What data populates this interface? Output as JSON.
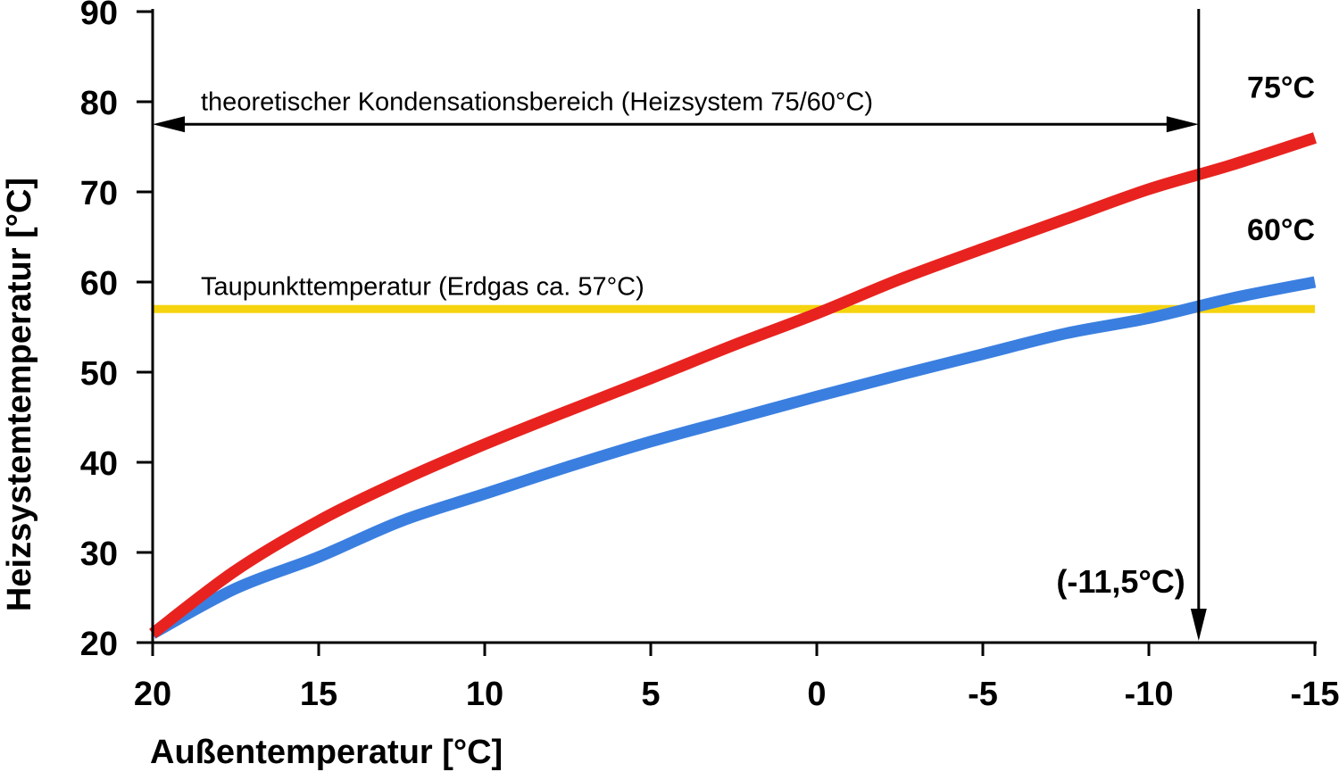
{
  "chart_data": {
    "type": "line",
    "xlabel": "Außentemperatur [°C]",
    "ylabel": "Heizsystemtemperatur [°C]",
    "xlim": [
      20,
      -15
    ],
    "ylim": [
      20,
      90
    ],
    "x_ticks": [
      "20",
      "15",
      "10",
      "5",
      "0",
      "-5",
      "-10",
      "-15"
    ],
    "y_ticks": [
      "20",
      "30",
      "40",
      "50",
      "60",
      "70",
      "80",
      "90"
    ],
    "x_tick_values": [
      20,
      15,
      10,
      5,
      0,
      -5,
      -10,
      -15
    ],
    "y_tick_values": [
      20,
      30,
      40,
      50,
      60,
      70,
      80,
      90
    ],
    "grid": false,
    "series": [
      {
        "name": "75°C",
        "color": "#e8231f",
        "x": [
          20,
          17.5,
          15,
          12.5,
          10,
          7.5,
          5,
          2.5,
          0,
          -2.5,
          -5,
          -7.5,
          -10,
          -12.5,
          -15
        ],
        "y": [
          21,
          28,
          33.5,
          38,
          42,
          45.7,
          49.3,
          53,
          56.5,
          60.3,
          63.7,
          67,
          70.3,
          73,
          76
        ]
      },
      {
        "name": "60°C",
        "color": "#3a7fe0",
        "x": [
          20,
          17.5,
          15,
          12.5,
          10,
          7.5,
          5,
          2.5,
          0,
          -2.5,
          -5,
          -7.5,
          -10,
          -12.5,
          -15
        ],
        "y": [
          21,
          26,
          29.5,
          33.5,
          36.5,
          39.5,
          42.3,
          44.8,
          47.3,
          49.7,
          52,
          54.3,
          56,
          58.2,
          60
        ]
      }
    ],
    "reference_line": {
      "label": "Taupunkttemperatur (Erdgas ca. 57°C)",
      "y": 57,
      "color": "#f5d40f"
    },
    "range_annotation": {
      "label": "theoretischer Kondensationsbereich (Heizsystem 75/60°C)",
      "y": 77.5,
      "x_from": 20,
      "x_to": -11.5
    },
    "vertical_marker": {
      "label": "(-11,5°C)",
      "x": -11.5
    }
  }
}
